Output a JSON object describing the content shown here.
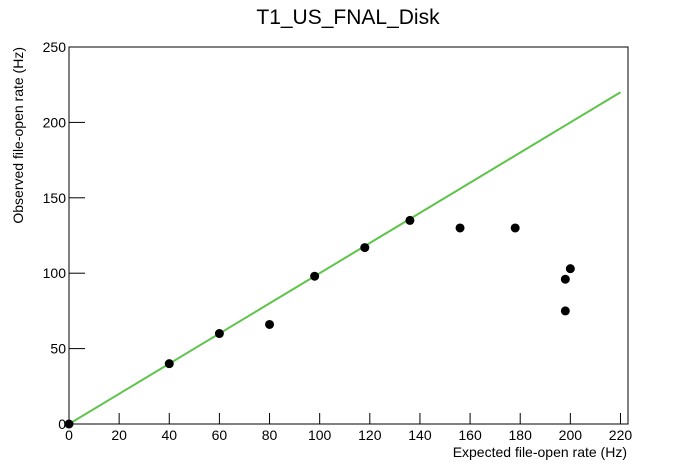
{
  "chart_data": {
    "type": "scatter",
    "title": "T1_US_FNAL_Disk",
    "x_label": "Expected file-open rate (Hz)",
    "y_label": "Observed file-open rate (Hz)",
    "x": [
      0,
      40,
      60,
      80,
      98,
      118,
      136,
      156,
      178,
      198,
      200,
      198
    ],
    "values": [
      0,
      40,
      60,
      66,
      98,
      117,
      135,
      130,
      130,
      96,
      103,
      75
    ],
    "color": "#000000",
    "fit": {
      "x": [
        0,
        220
      ],
      "values": [
        0,
        220
      ],
      "color": "#5ec44a"
    },
    "xlim": [
      0,
      223
    ],
    "ylim": [
      0,
      250
    ],
    "xticks": [
      0,
      20,
      40,
      60,
      80,
      100,
      120,
      140,
      160,
      180,
      200,
      220
    ],
    "yticks": [
      0,
      50,
      100,
      150,
      200,
      250
    ]
  }
}
